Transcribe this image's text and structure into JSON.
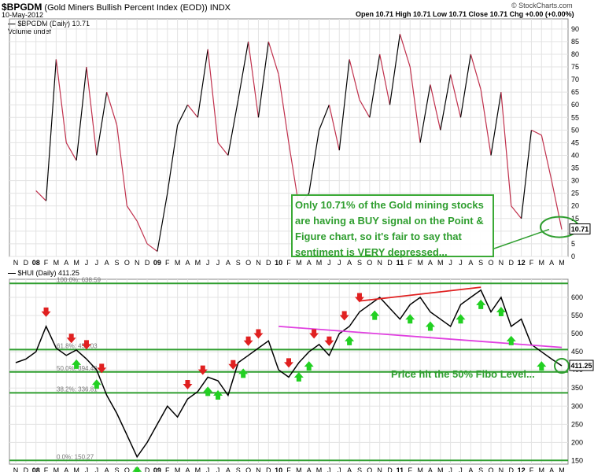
{
  "header": {
    "symbol": "$BPGDM",
    "description": "(Gold Miners Bullish Percent Index (EOD))",
    "exchange": "INDX",
    "date": "10-May-2012",
    "ohlc": "Open 10.71  High 10.71  Low 10.71  Close 10.71  Chg +0.00 (+0.00%)",
    "brand": "© StockCharts.com"
  },
  "legend_top": {
    "series": "$BPGDM (Daily) 10.71",
    "volume": "Volume undef"
  },
  "legend_bottom": {
    "series": "$HUI (Daily) 411.25"
  },
  "annotations": {
    "pf_note": "Only 10.71% of the Gold mining stocks are having a BUY signal on the Point & Figure chart, so it's fair to say that sentiment is VERY depressed...",
    "fibo_note": "Price hit the 50% Fibo Level...",
    "top_last_value": "10.71",
    "bottom_last_value": "411.25"
  },
  "colors": {
    "green": "#2f9e2f",
    "red": "#e02020",
    "magenta": "#e040e0",
    "price": "#000000",
    "bp_up": "#000000",
    "bp_down": "#c0304c"
  },
  "chart_data": [
    {
      "type": "line",
      "title": "$BPGDM (Daily) 10.71",
      "ylim": [
        0,
        94
      ],
      "yticks": [
        0,
        5,
        10,
        15,
        20,
        25,
        30,
        35,
        40,
        45,
        50,
        55,
        60,
        65,
        70,
        75,
        80,
        85,
        90
      ],
      "x_tick_labels": [
        "N",
        "D",
        "08",
        "F",
        "M",
        "A",
        "M",
        "J",
        "J",
        "A",
        "S",
        "O",
        "N",
        "D",
        "09",
        "F",
        "M",
        "A",
        "M",
        "J",
        "J",
        "A",
        "S",
        "O",
        "N",
        "D",
        "10",
        "F",
        "M",
        "A",
        "M",
        "J",
        "J",
        "A",
        "S",
        "O",
        "N",
        "D",
        "11",
        "F",
        "M",
        "A",
        "M",
        "J",
        "J",
        "A",
        "S",
        "O",
        "N",
        "D",
        "12",
        "F",
        "M",
        "A",
        "M"
      ],
      "series": [
        {
          "name": "$BPGDM",
          "t": [
            2,
            3,
            4,
            5,
            6,
            7,
            8,
            9,
            10,
            11,
            12,
            13,
            14,
            15,
            16,
            17,
            18,
            19,
            20,
            21,
            22,
            23,
            24,
            25,
            26,
            27,
            28,
            29,
            30,
            31,
            32,
            33,
            34,
            35,
            36,
            37,
            38,
            39,
            40,
            41,
            42,
            43,
            44,
            45,
            46,
            47,
            48,
            49,
            50,
            51,
            52,
            53,
            54
          ],
          "values": [
            26,
            22,
            78,
            45,
            38,
            75,
            40,
            65,
            52,
            20,
            14,
            5,
            2,
            25,
            52,
            60,
            55,
            82,
            45,
            40,
            62,
            85,
            55,
            85,
            72,
            45,
            20,
            25,
            50,
            60,
            42,
            78,
            62,
            55,
            80,
            60,
            88,
            75,
            45,
            68,
            50,
            72,
            55,
            80,
            66,
            40,
            65,
            20,
            15,
            50,
            48,
            30,
            10.71
          ]
        }
      ]
    },
    {
      "type": "line",
      "title": "$HUI (Daily) 411.25",
      "ylim": [
        140,
        650
      ],
      "yticks": [
        150,
        200,
        250,
        300,
        350,
        400,
        450,
        500,
        550,
        600
      ],
      "x_tick_labels": [
        "N",
        "D",
        "08",
        "F",
        "M",
        "A",
        "M",
        "J",
        "J",
        "A",
        "S",
        "O",
        "N",
        "D",
        "09",
        "F",
        "M",
        "A",
        "M",
        "J",
        "J",
        "A",
        "S",
        "O",
        "N",
        "D",
        "10",
        "F",
        "M",
        "A",
        "M",
        "J",
        "J",
        "A",
        "S",
        "O",
        "N",
        "D",
        "11",
        "F",
        "M",
        "A",
        "M",
        "J",
        "J",
        "A",
        "S",
        "O",
        "N",
        "D",
        "12",
        "F",
        "M",
        "A",
        "M"
      ],
      "series": [
        {
          "name": "$HUI",
          "t": [
            0,
            1,
            2,
            3,
            4,
            5,
            6,
            7,
            8,
            9,
            10,
            11,
            12,
            13,
            14,
            15,
            16,
            17,
            18,
            19,
            20,
            21,
            22,
            23,
            24,
            25,
            26,
            27,
            28,
            29,
            30,
            31,
            32,
            33,
            34,
            35,
            36,
            37,
            38,
            39,
            40,
            41,
            42,
            43,
            44,
            45,
            46,
            47,
            48,
            49,
            50,
            51,
            52,
            53,
            54
          ],
          "values": [
            420,
            430,
            450,
            520,
            460,
            440,
            455,
            430,
            400,
            330,
            280,
            220,
            160,
            200,
            250,
            300,
            270,
            320,
            340,
            380,
            370,
            330,
            420,
            440,
            460,
            480,
            400,
            380,
            420,
            450,
            470,
            440,
            500,
            520,
            560,
            580,
            600,
            570,
            540,
            580,
            600,
            560,
            540,
            520,
            580,
            600,
            620,
            560,
            600,
            520,
            540,
            470,
            450,
            430,
            411.25
          ]
        }
      ],
      "fibonacci": [
        {
          "label": "100.0%: 638.59",
          "value": 638.59
        },
        {
          "label": "61.8%: 456.03",
          "value": 456.03
        },
        {
          "label": "50.0%: 394.43",
          "value": 394.43
        },
        {
          "label": "38.2%: 336.81",
          "value": 336.81
        },
        {
          "label": "0.0%: 150.27",
          "value": 150.27
        }
      ],
      "sell_signals_t": [
        3,
        5.5,
        7,
        8.5,
        17,
        18.5,
        21.5,
        23,
        24,
        27,
        29.5,
        31,
        32.5,
        34
      ],
      "buy_signals_t": [
        6,
        8,
        12,
        19,
        20,
        22.5,
        28,
        29,
        33,
        35.5,
        39,
        41,
        44,
        46,
        48,
        49,
        52
      ]
    }
  ]
}
